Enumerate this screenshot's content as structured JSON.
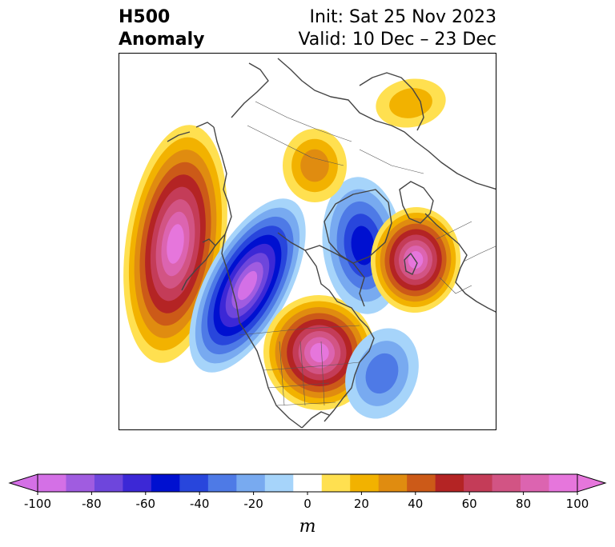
{
  "title": {
    "left_line1": "H500",
    "left_line2": "Anomaly",
    "right_line1": "Init: Sat 25 Nov 2023",
    "right_line2": "Valid: 10 Dec – 23 Dec"
  },
  "colorbar": {
    "units": "m",
    "ticks": [
      "-100",
      "-80",
      "-60",
      "-40",
      "-20",
      "0",
      "20",
      "40",
      "60",
      "80",
      "100"
    ],
    "colors": [
      "#d470e6",
      "#a05ce0",
      "#6e46dc",
      "#3c28d6",
      "#0010d0",
      "#2846dc",
      "#4e7ae6",
      "#78aaf0",
      "#a6d4fa",
      "#ffffff",
      "#ffe050",
      "#f2b200",
      "#e08c10",
      "#cc5a18",
      "#b42424",
      "#c43c58",
      "#d25484",
      "#dc64b0",
      "#e676dc"
    ]
  },
  "anomaly_centers": [
    {
      "name": "pacific-ridge",
      "sign": "positive",
      "peak_m": 100
    },
    {
      "name": "western-trough",
      "sign": "negative",
      "peak_m": -100
    },
    {
      "name": "eastern-na-ridge",
      "sign": "positive",
      "peak_m": 100
    },
    {
      "name": "atlantic-trough",
      "sign": "negative",
      "peak_m": -60
    },
    {
      "name": "europe-ridge",
      "sign": "positive",
      "peak_m": 100
    },
    {
      "name": "central-atlantic-trough",
      "sign": "negative",
      "peak_m": -30
    },
    {
      "name": "arctic-ridge",
      "sign": "positive",
      "peak_m": 30
    },
    {
      "name": "siberia-ridge",
      "sign": "positive",
      "peak_m": 20
    }
  ]
}
